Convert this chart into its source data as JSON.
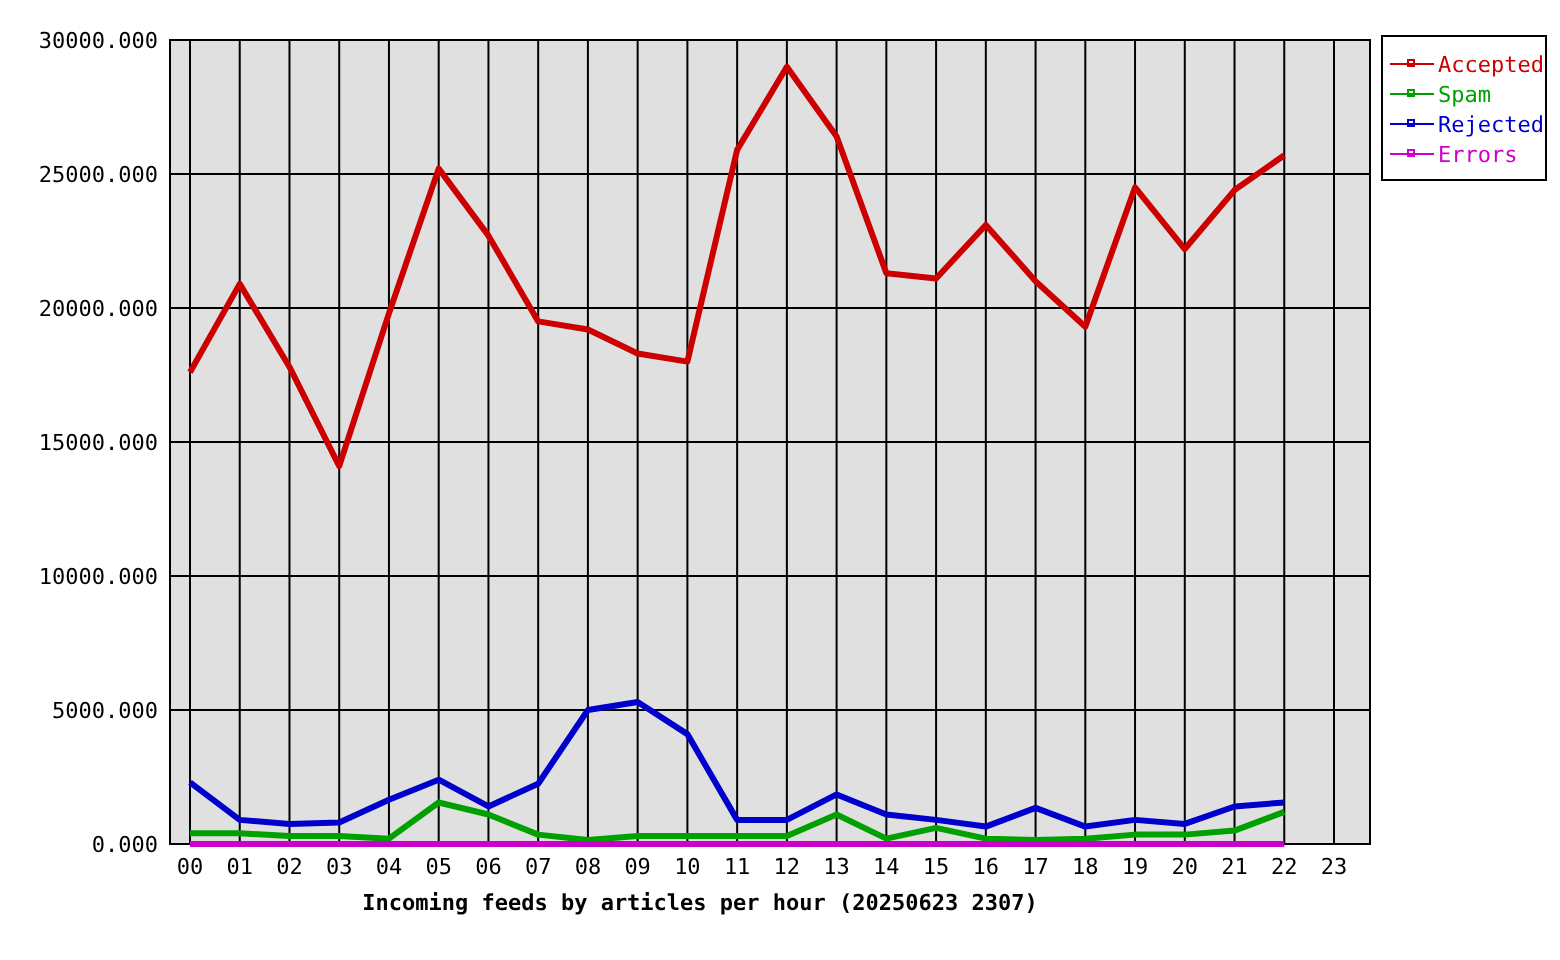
{
  "chart_data": {
    "type": "line",
    "xlabel": "Incoming feeds by articles per hour (20250623 2307)",
    "categories": [
      "00",
      "01",
      "02",
      "03",
      "04",
      "05",
      "06",
      "07",
      "08",
      "09",
      "10",
      "11",
      "12",
      "13",
      "14",
      "15",
      "16",
      "17",
      "18",
      "19",
      "20",
      "21",
      "22",
      "23"
    ],
    "series": [
      {
        "name": "Accepted",
        "color": "#cc0000",
        "values": [
          17600,
          20900,
          17800,
          14100,
          19800,
          25200,
          22700,
          19500,
          19200,
          18300,
          18000,
          25900,
          29000,
          26400,
          21300,
          21100,
          23100,
          21000,
          19300,
          24500,
          22200,
          24400,
          25700,
          null
        ]
      },
      {
        "name": "Spam",
        "color": "#00a000",
        "values": [
          400,
          400,
          300,
          300,
          200,
          1550,
          1100,
          350,
          150,
          300,
          300,
          300,
          300,
          1100,
          200,
          600,
          200,
          150,
          200,
          350,
          350,
          500,
          1200,
          null
        ]
      },
      {
        "name": "Rejected",
        "color": "#0000cc",
        "values": [
          2300,
          900,
          750,
          800,
          1650,
          2400,
          1400,
          2250,
          5000,
          5300,
          4100,
          900,
          900,
          1850,
          1100,
          900,
          650,
          1350,
          650,
          900,
          750,
          1400,
          1550,
          null
        ]
      },
      {
        "name": "Errors",
        "color": "#cc00cc",
        "values": [
          0,
          0,
          0,
          0,
          0,
          0,
          0,
          0,
          0,
          0,
          0,
          0,
          0,
          0,
          0,
          0,
          0,
          0,
          0,
          0,
          0,
          0,
          0,
          null
        ]
      }
    ],
    "ylim": [
      0,
      30000
    ],
    "yticks": [
      {
        "value": 0,
        "label": "0.000"
      },
      {
        "value": 5000,
        "label": "5000.000"
      },
      {
        "value": 10000,
        "label": "10000.000"
      },
      {
        "value": 15000,
        "label": "15000.000"
      },
      {
        "value": 20000,
        "label": "20000.000"
      },
      {
        "value": 25000,
        "label": "25000.000"
      },
      {
        "value": 30000,
        "label": "30000.000"
      }
    ],
    "grid": true,
    "legend": "top right"
  }
}
